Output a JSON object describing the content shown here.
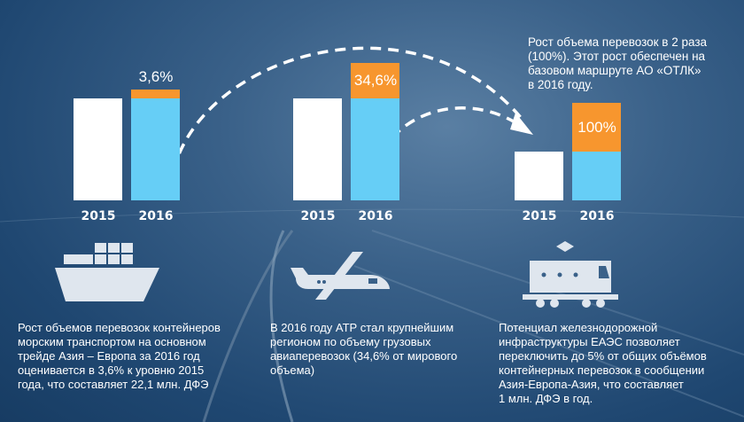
{
  "colors": {
    "base": "#ffffff",
    "current": "#66cef6",
    "growth": "#f7962e",
    "background": "#2b5680"
  },
  "chart_data": [
    {
      "type": "bar",
      "stacked": true,
      "categories": [
        "2015",
        "2016"
      ],
      "series": [
        {
          "values": [
            100,
            100
          ]
        },
        {
          "values": [
            0,
            3.6
          ]
        }
      ],
      "data_label": "3,6%"
    },
    {
      "type": "bar",
      "stacked": true,
      "categories": [
        "2015",
        "2016"
      ],
      "series": [
        {
          "values": [
            100,
            100
          ]
        },
        {
          "values": [
            0,
            34.6
          ]
        }
      ],
      "data_label": "34,6%"
    },
    {
      "type": "bar",
      "stacked": true,
      "categories": [
        "2015",
        "2016"
      ],
      "series": [
        {
          "values": [
            100,
            100
          ]
        },
        {
          "values": [
            0,
            100
          ]
        }
      ],
      "data_label": "100%"
    }
  ],
  "top_note": "Рост объема перевозок в 2 раза\n(100%). Этот рост обеспечен на\nбазовом маршруте АО «ОТЛК»\nв 2016 году.",
  "captions": [
    {
      "icon": "ship-icon",
      "text": "Рост объемов перевозок контейнеров\nморским транспортом на основном\nтрейде Азия – Европа за 2016 год\nоценивается в 3,6% к  уровню 2015\nгода, что составляет 22,1 млн. ДФЭ"
    },
    {
      "icon": "airplane-icon",
      "text": "В 2016 году АТР стал крупнейшим\nрегионом по объему грузовых\nавиаперевозок (34,6% от мирового\nобъема)"
    },
    {
      "icon": "train-icon",
      "text": "Потенциал железнодорожной\nинфраструктуры ЕАЭС позволяет\nпереключить до 5% от общих объёмов\nконтейнерных перевозок в сообщении\nАзия-Европа-Азия, что составляет\n1 млн. ДФЭ в год."
    }
  ]
}
